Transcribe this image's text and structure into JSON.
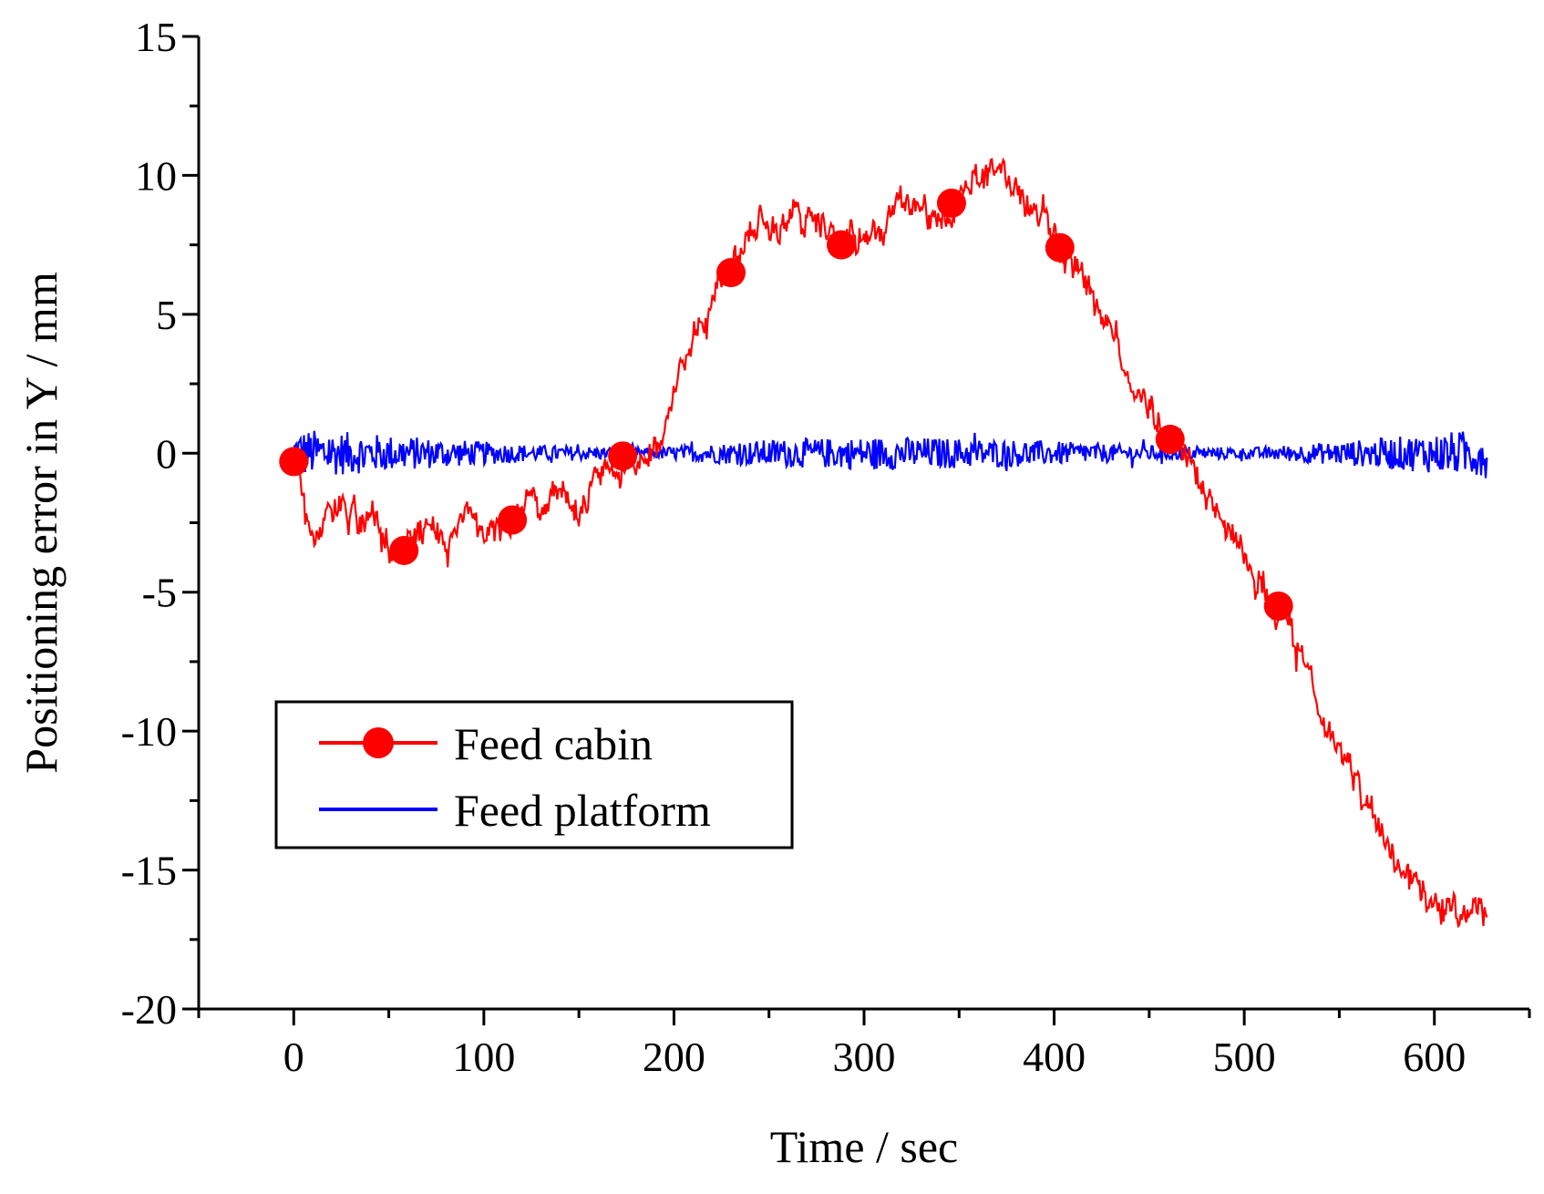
{
  "chart_data": {
    "type": "line",
    "title": "",
    "xlabel": "Time / sec",
    "ylabel": "Positioning error in Y / mm",
    "xlim": [
      -50,
      650
    ],
    "ylim": [
      -20,
      15
    ],
    "xticks": [
      0,
      100,
      200,
      300,
      400,
      500,
      600
    ],
    "xtick_labels": [
      "0",
      "100",
      "200",
      "300",
      "400",
      "500",
      "600"
    ],
    "yticks": [
      15,
      10,
      5,
      0,
      -5,
      -10,
      -15,
      -20
    ],
    "ytick_labels": [
      "15",
      "10",
      "5",
      "0",
      "-5",
      "-10",
      "-15",
      "-20"
    ],
    "legend_position": "lower-left",
    "series": [
      {
        "name": "Feed cabin",
        "color": "#ff0000",
        "marker": "circle",
        "x": [
          0,
          10,
          20,
          30,
          40,
          50,
          58,
          70,
          80,
          90,
          100,
          115,
          130,
          150,
          170,
          190,
          200,
          210,
          220,
          230,
          240,
          260,
          280,
          288,
          300,
          310,
          320,
          330,
          346,
          355,
          370,
          385,
          403,
          420,
          440,
          460,
          470,
          480,
          500,
          518,
          535,
          550,
          570,
          590,
          610,
          628
        ],
        "y": [
          -0.3,
          -3.0,
          -2.0,
          -2.2,
          -2.8,
          -3.3,
          -3.5,
          -3.3,
          -3.8,
          -2.5,
          -3.5,
          -2.4,
          -2.0,
          -1.5,
          -0.5,
          0.0,
          2.0,
          4.5,
          5.5,
          6.5,
          8.0,
          8.7,
          8.2,
          7.5,
          7.8,
          7.8,
          9.0,
          8.5,
          9.0,
          10.0,
          10.0,
          9.0,
          7.4,
          6.0,
          3.0,
          0.5,
          0.0,
          -1.5,
          -3.5,
          -5.5,
          -8.5,
          -11.0,
          -13.5,
          -15.5,
          -16.5,
          -16.5
        ],
        "marker_x": [
          0,
          58,
          115,
          173,
          230,
          288,
          346,
          403,
          461,
          518
        ],
        "marker_y": [
          -0.3,
          -3.5,
          -2.4,
          -0.1,
          6.5,
          7.5,
          9.0,
          7.4,
          0.5,
          -5.5
        ]
      },
      {
        "name": "Feed platform",
        "color": "#0000ff",
        "marker": "none",
        "x": [
          0,
          628
        ],
        "y": [
          0,
          0
        ],
        "noise_amplitude": [
          0.9,
          0.6,
          0.3,
          0.2,
          0.5,
          0.6,
          0.5,
          0.3,
          0.2,
          0.5,
          0.9
        ]
      }
    ]
  }
}
